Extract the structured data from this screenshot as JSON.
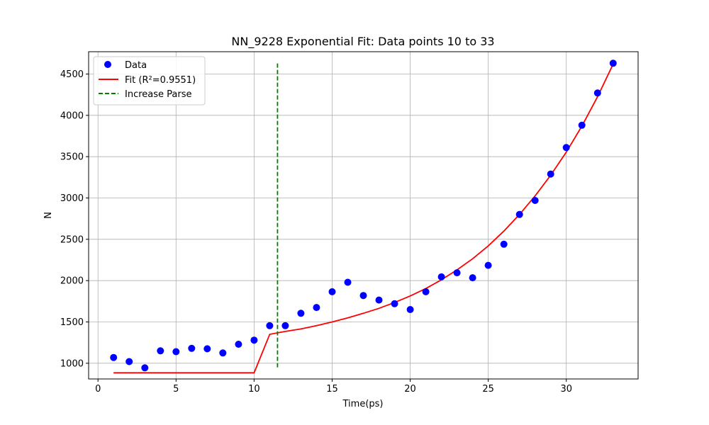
{
  "chart_data": {
    "type": "scatter",
    "title": "NN_9228 Exponential Fit: Data points 10 to 33",
    "xlabel": "Time(ps)",
    "ylabel": "N",
    "xlim": [
      -0.6,
      34.6
    ],
    "ylim": [
      810,
      4770
    ],
    "xticks": [
      0,
      5,
      10,
      15,
      20,
      25,
      30
    ],
    "yticks": [
      1000,
      1500,
      2000,
      2500,
      3000,
      3500,
      4000,
      4500
    ],
    "grid": true,
    "legend_position": "top-left",
    "series": [
      {
        "name": "Data",
        "kind": "scatter",
        "color": "#0000ff",
        "x": [
          1,
          2,
          3,
          4,
          5,
          6,
          7,
          8,
          9,
          10,
          11,
          12,
          13,
          14,
          15,
          16,
          17,
          18,
          19,
          20,
          21,
          22,
          23,
          24,
          25,
          26,
          27,
          28,
          29,
          30,
          31,
          32,
          33
        ],
        "y": [
          1070,
          1020,
          945,
          1150,
          1140,
          1180,
          1175,
          1125,
          1230,
          1280,
          1455,
          1455,
          1605,
          1675,
          1865,
          1980,
          1820,
          1765,
          1720,
          1650,
          1865,
          2045,
          2095,
          2035,
          2185,
          2440,
          2800,
          2970,
          3290,
          3610,
          3880,
          4270,
          4630
        ]
      },
      {
        "name": "Fit (R²=0.9551)",
        "kind": "line",
        "color": "#ff0000",
        "x": [
          1,
          2,
          3,
          4,
          5,
          6,
          7,
          8,
          9,
          10,
          11,
          12,
          13,
          14,
          15,
          16,
          17,
          18,
          19,
          20,
          21,
          22,
          23,
          24,
          25,
          26,
          27,
          28,
          29,
          30,
          31,
          32,
          33
        ],
        "y": [
          885,
          885,
          885,
          885,
          885,
          885,
          885,
          885,
          885,
          885,
          1350,
          1385,
          1415,
          1455,
          1500,
          1550,
          1605,
          1665,
          1735,
          1815,
          1905,
          2010,
          2130,
          2265,
          2420,
          2600,
          2800,
          3025,
          3275,
          3555,
          3870,
          4225,
          4620
        ]
      },
      {
        "name": "Increase Parse",
        "kind": "vline",
        "color": "#008000",
        "x": 11.5,
        "y_range": [
          950,
          4630
        ]
      }
    ]
  }
}
